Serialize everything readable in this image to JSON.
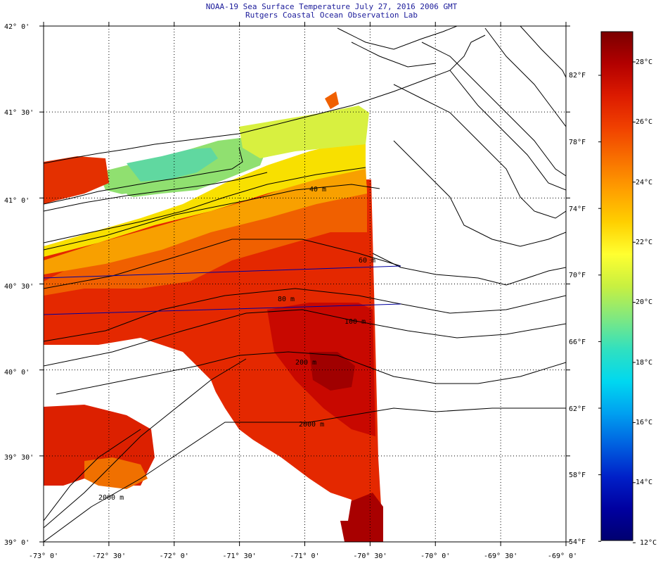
{
  "title": {
    "line1": "NOAA-19 Sea Surface Temperature July 27, 2016 2006 GMT",
    "line2": "Rutgers Coastal Ocean Observation Lab"
  },
  "map": {
    "lon_ticks": [
      "-73° 0'",
      "-72° 30'",
      "-72° 0'",
      "-71° 30'",
      "-71° 0'",
      "-70° 30'",
      "-70° 0'",
      "-69° 30'",
      "-69° 0'"
    ],
    "lat_ticks": [
      "42° 0'",
      "41° 30'",
      "41° 0'",
      "40° 30'",
      "40° 0'",
      "39° 30'",
      "39° 0'"
    ],
    "lon_range": [
      -73.0,
      -69.0
    ],
    "lat_range": [
      39.0,
      42.0
    ],
    "isobaths": [
      "40 m",
      "60 m",
      "80 m",
      "100 m",
      "200 m",
      "2000 m",
      "2000 m"
    ]
  },
  "colorbar": {
    "celsius": [
      "28°C",
      "26°C",
      "24°C",
      "22°C",
      "20°C",
      "18°C",
      "16°C",
      "14°C",
      "12°C"
    ],
    "fahrenheit": [
      "82°F",
      "78°F",
      "74°F",
      "70°F",
      "66°F",
      "62°F",
      "58°F",
      "54°F"
    ],
    "colors": [
      "#7a0000",
      "#b20000",
      "#dc1a00",
      "#f04000",
      "#f87000",
      "#ffa000",
      "#ffd000",
      "#ffff30",
      "#c8f040",
      "#80e880",
      "#30e0c0",
      "#00d8f0",
      "#00a0f0",
      "#0060e0",
      "#0020c8",
      "#0000a0",
      "#000070"
    ]
  }
}
